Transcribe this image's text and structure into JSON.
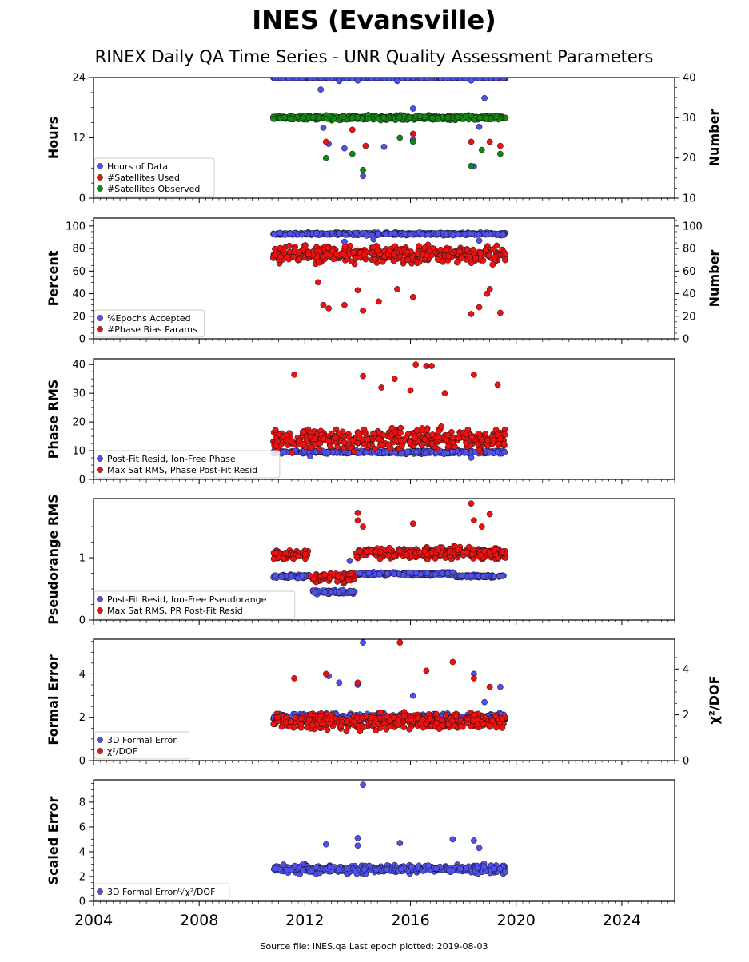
{
  "figure": {
    "title": "INES (Evansville)",
    "subtitle": "RINEX Daily QA Time Series - UNR Quality Assessment Parameters",
    "footer": "Source file: INES.qa Last epoch plotted: 2019-08-03"
  },
  "colors": {
    "blue": "#5050ee",
    "red": "#ee1111",
    "green": "#118811",
    "edge": "#111111",
    "frame": "#000000"
  },
  "chart_data": [
    {
      "type": "scatter",
      "ylabel": "Hours",
      "ylabel_right": "Number",
      "xlim": [
        2004,
        2026
      ],
      "x_ticks": [
        "2004",
        "2008",
        "2012",
        "2016",
        "2020",
        "2024"
      ],
      "ylim": [
        0,
        24
      ],
      "y_ticks": [
        "0",
        "12",
        "24"
      ],
      "ylim_right": [
        10,
        40
      ],
      "y_ticks_right": [
        "10",
        "20",
        "30",
        "40"
      ],
      "grid": false,
      "legend_position": "lower-left",
      "data_x_range": [
        2010.8,
        2019.6
      ],
      "series": [
        {
          "name": "Hours of Data",
          "color": "blue",
          "axis": "left",
          "base": 23.9,
          "spread": 0.1,
          "outliers": [
            [
              2012.6,
              21.6
            ],
            [
              2013.3,
              23.3
            ],
            [
              2014.0,
              23.4
            ],
            [
              2015.5,
              23.3
            ],
            [
              2016.1,
              17.8
            ],
            [
              2018.3,
              23.4
            ],
            [
              2012.7,
              14.0
            ],
            [
              2012.9,
              10.8
            ],
            [
              2013.5,
              9.9
            ],
            [
              2014.2,
              4.4
            ],
            [
              2015.0,
              10.2
            ],
            [
              2016.1,
              11.6
            ],
            [
              2018.4,
              6.3
            ],
            [
              2018.6,
              14.2
            ],
            [
              2018.8,
              19.9
            ]
          ]
        },
        {
          "name": "#Satellites Used",
          "color": "red",
          "axis": "right",
          "base": 30.0,
          "spread": 0.4,
          "outliers": [
            [
              2012.8,
              24.0
            ],
            [
              2013.8,
              27.0
            ],
            [
              2014.3,
              23.0
            ],
            [
              2016.1,
              26.0
            ],
            [
              2018.3,
              24.0
            ],
            [
              2019.0,
              24.0
            ],
            [
              2019.4,
              23.0
            ]
          ]
        },
        {
          "name": "#Satellites Observed",
          "color": "green",
          "axis": "right",
          "base": 30.0,
          "spread": 0.8,
          "outliers": [
            [
              2012.8,
              20.0
            ],
            [
              2013.8,
              21.0
            ],
            [
              2014.2,
              17.0
            ],
            [
              2015.6,
              25.0
            ],
            [
              2016.1,
              24.0
            ],
            [
              2018.3,
              18.0
            ],
            [
              2018.7,
              22.0
            ],
            [
              2019.4,
              21.0
            ]
          ]
        }
      ]
    },
    {
      "type": "scatter",
      "ylabel": "Percent",
      "ylabel_right": "Number",
      "xlim": [
        2004,
        2026
      ],
      "x_ticks": [
        "2004",
        "2008",
        "2012",
        "2016",
        "2020",
        "2024"
      ],
      "ylim": [
        0,
        107
      ],
      "y_ticks": [
        "0",
        "20",
        "40",
        "60",
        "80",
        "100"
      ],
      "ylim_right": [
        0,
        107
      ],
      "y_ticks_right": [
        "0",
        "20",
        "40",
        "60",
        "80",
        "100"
      ],
      "grid": false,
      "legend_position": "lower-left",
      "data_x_range": [
        2010.8,
        2019.6
      ],
      "series": [
        {
          "name": "%Epochs Accepted",
          "color": "blue",
          "axis": "left",
          "base": 93.0,
          "spread": 1.5,
          "outliers": [
            [
              2013.5,
              86.0
            ],
            [
              2014.6,
              88.0
            ],
            [
              2018.6,
              87.0
            ]
          ]
        },
        {
          "name": "#Phase Bias Params",
          "color": "red",
          "axis": "right",
          "base": 75.0,
          "spread": 10.0,
          "outliers": [
            [
              2012.7,
              30.0
            ],
            [
              2012.9,
              27.0
            ],
            [
              2013.5,
              30.0
            ],
            [
              2014.0,
              43.0
            ],
            [
              2014.2,
              25.0
            ],
            [
              2014.8,
              33.0
            ],
            [
              2016.1,
              37.0
            ],
            [
              2015.5,
              44.0
            ],
            [
              2018.3,
              22.0
            ],
            [
              2018.6,
              28.0
            ],
            [
              2019.4,
              23.0
            ],
            [
              2012.5,
              50.0
            ],
            [
              2018.9,
              40.0
            ],
            [
              2019.0,
              44.0
            ]
          ]
        }
      ]
    },
    {
      "type": "scatter",
      "ylabel": "Phase RMS",
      "xlim": [
        2004,
        2026
      ],
      "x_ticks": [
        "2004",
        "2008",
        "2012",
        "2016",
        "2020",
        "2024"
      ],
      "ylim": [
        0,
        42
      ],
      "y_ticks": [
        "0",
        "10",
        "20",
        "30",
        "40"
      ],
      "grid": false,
      "legend_position": "lower-left",
      "data_x_range": [
        2010.8,
        2019.6
      ],
      "series": [
        {
          "name": "Post-Fit Resid, Ion-Free Phase",
          "color": "blue",
          "axis": "left",
          "base": 9.5,
          "spread": 0.8,
          "outliers": [
            [
              2012.2,
              8.0
            ],
            [
              2018.3,
              7.5
            ]
          ]
        },
        {
          "name": "Max Sat RMS, Phase Post-Fit Resid",
          "color": "red",
          "axis": "left",
          "base": 14.0,
          "spread": 5.0,
          "outliers": [
            [
              2011.6,
              36.5
            ],
            [
              2014.2,
              36.0
            ],
            [
              2014.9,
              32.0
            ],
            [
              2015.4,
              35.0
            ],
            [
              2016.2,
              40.0
            ],
            [
              2016.6,
              39.5
            ],
            [
              2016.8,
              39.5
            ],
            [
              2018.4,
              36.5
            ],
            [
              2019.3,
              33.0
            ],
            [
              2017.3,
              30.0
            ],
            [
              2016.0,
              31.0
            ]
          ]
        }
      ]
    },
    {
      "type": "scatter",
      "ylabel": "Pseudorange RMS",
      "xlim": [
        2004,
        2026
      ],
      "x_ticks": [
        "2004",
        "2008",
        "2012",
        "2016",
        "2020",
        "2024"
      ],
      "ylim": [
        0,
        1.95
      ],
      "y_ticks": [
        "0",
        "1"
      ],
      "grid": false,
      "legend_position": "lower-left",
      "data_x_range": [
        2010.8,
        2019.6
      ],
      "segments": [
        {
          "series": 0,
          "x": [
            2010.8,
            2012.2
          ],
          "base": 0.7,
          "spread": 0.04
        },
        {
          "series": 0,
          "x": [
            2012.2,
            2013.9
          ],
          "base": 0.45,
          "spread": 0.04
        },
        {
          "series": 0,
          "x": [
            2013.9,
            2017.7
          ],
          "base": 0.74,
          "spread": 0.04
        },
        {
          "series": 0,
          "x": [
            2017.7,
            2019.6
          ],
          "base": 0.7,
          "spread": 0.03
        },
        {
          "series": 1,
          "x": [
            2010.8,
            2012.2
          ],
          "base": 1.05,
          "spread": 0.12
        },
        {
          "series": 1,
          "x": [
            2012.2,
            2013.9
          ],
          "base": 0.68,
          "spread": 0.12
        },
        {
          "series": 1,
          "x": [
            2013.9,
            2019.6
          ],
          "base": 1.08,
          "spread": 0.13
        }
      ],
      "series": [
        {
          "name": "Post-Fit Resid, Ion-Free Pseudorange",
          "color": "blue",
          "axis": "left",
          "base": 0.7,
          "spread": 0.04,
          "outliers": [
            [
              2013.7,
              0.95
            ]
          ]
        },
        {
          "name": "Max Sat RMS, PR Post-Fit Resid",
          "color": "red",
          "axis": "left",
          "base": 1.05,
          "spread": 0.12,
          "outliers": [
            [
              2014.0,
              1.72
            ],
            [
              2014.0,
              1.6
            ],
            [
              2016.1,
              1.55
            ],
            [
              2018.3,
              1.87
            ],
            [
              2018.4,
              1.6
            ],
            [
              2019.0,
              1.7
            ],
            [
              2018.7,
              1.5
            ],
            [
              2014.2,
              1.5
            ]
          ]
        }
      ]
    },
    {
      "type": "scatter",
      "ylabel": "Formal Error",
      "ylabel_right": "χ²/DOF",
      "xlim": [
        2004,
        2026
      ],
      "x_ticks": [
        "2004",
        "2008",
        "2012",
        "2016",
        "2020",
        "2024"
      ],
      "ylim": [
        0,
        5.6
      ],
      "y_ticks": [
        "0",
        "2",
        "4"
      ],
      "ylim_right": [
        0,
        5.3
      ],
      "y_ticks_right": [
        "0",
        "2",
        "4"
      ],
      "grid": false,
      "legend_position": "lower-left",
      "data_x_range": [
        2010.8,
        2019.6
      ],
      "series": [
        {
          "name": "3D Formal Error",
          "color": "blue",
          "axis": "left",
          "base": 2.0,
          "spread": 0.25,
          "outliers": [
            [
              2014.2,
              5.45
            ],
            [
              2013.3,
              3.6
            ],
            [
              2012.9,
              3.9
            ],
            [
              2014.0,
              3.5
            ],
            [
              2016.1,
              3.0
            ],
            [
              2018.4,
              4.0
            ],
            [
              2018.8,
              2.7
            ],
            [
              2019.4,
              3.4
            ]
          ]
        },
        {
          "name": "χ²/DOF",
          "color": "red",
          "axis": "left",
          "base": 1.8,
          "spread": 0.5,
          "outliers": [
            [
              2015.6,
              5.45
            ],
            [
              2017.6,
              4.55
            ],
            [
              2016.6,
              4.15
            ],
            [
              2011.6,
              3.8
            ],
            [
              2012.8,
              4.0
            ],
            [
              2014.0,
              3.6
            ],
            [
              2018.4,
              3.8
            ],
            [
              2019.0,
              3.4
            ]
          ]
        }
      ]
    },
    {
      "type": "scatter",
      "ylabel": "Scaled Error",
      "xlim": [
        2004,
        2026
      ],
      "x_ticks": [
        "2004",
        "2008",
        "2012",
        "2016",
        "2020",
        "2024"
      ],
      "ylim": [
        0,
        9.8
      ],
      "y_ticks": [
        "0",
        "2",
        "4",
        "6",
        "8"
      ],
      "grid": false,
      "legend_position": "lower-left",
      "data_x_range": [
        2010.8,
        2019.6
      ],
      "series": [
        {
          "name": "3D Formal Error/√χ²/DOF",
          "color": "blue",
          "axis": "left",
          "base": 2.6,
          "spread": 0.5,
          "outliers": [
            [
              2014.2,
              9.4
            ],
            [
              2014.0,
              5.1
            ],
            [
              2015.6,
              4.7
            ],
            [
              2017.6,
              5.0
            ],
            [
              2018.4,
              4.9
            ],
            [
              2012.8,
              4.6
            ],
            [
              2014.0,
              4.5
            ],
            [
              2018.6,
              4.3
            ]
          ]
        }
      ]
    }
  ]
}
